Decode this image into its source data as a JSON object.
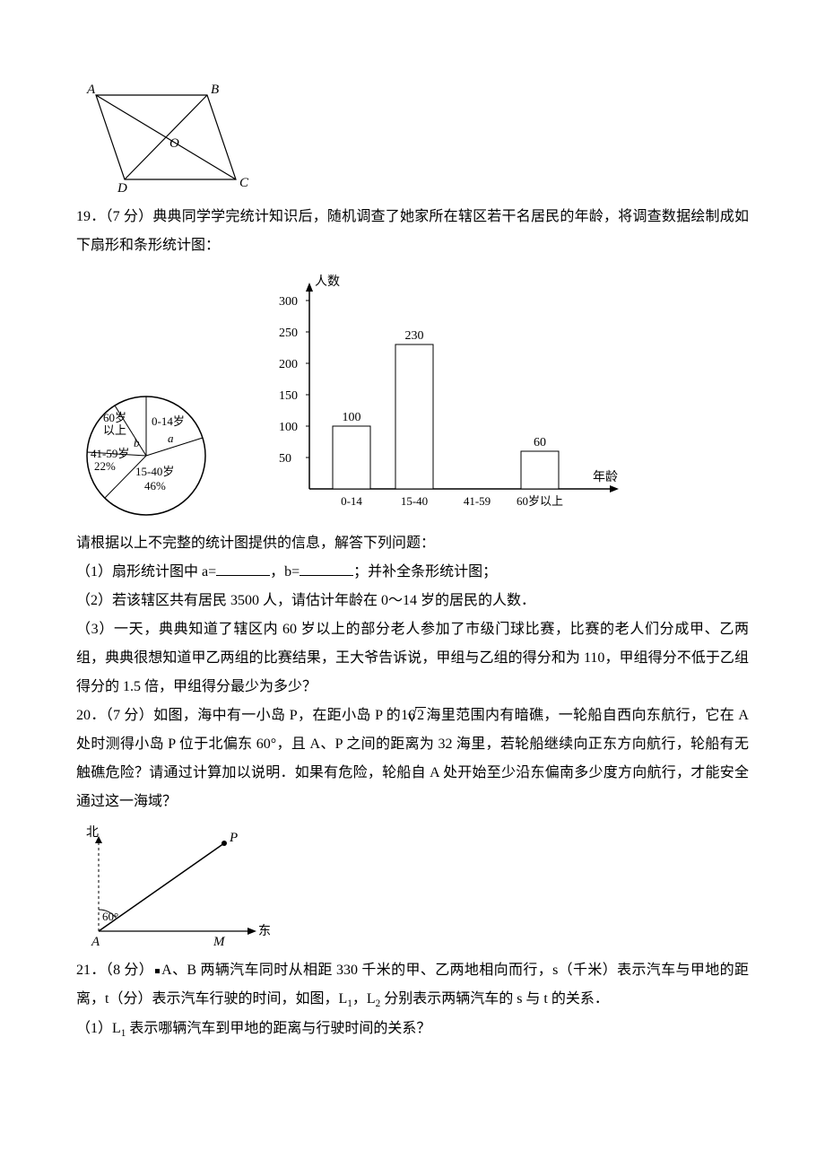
{
  "fig18": {
    "labels": {
      "A": "A",
      "B": "B",
      "C": "C",
      "D": "D",
      "O": "O"
    },
    "points": {
      "A": [
        22,
        10
      ],
      "B": [
        146,
        10
      ],
      "C": [
        178,
        112
      ],
      "D": [
        54,
        112
      ]
    },
    "stroke": "#000000",
    "label_fontsize": 15,
    "label_style": "italic"
  },
  "q19": {
    "num": "19．",
    "points": "（7 分）",
    "text1": "典典同学学完统计知识后，随机调查了她家所在辖区若干名居民的年龄，将调查数据绘制成如下扇形和条形统计图：",
    "text2": "请根据以上不完整的统计图提供的信息，解答下列问题：",
    "sub1_a": "（1）扇形统计图中 a=",
    "sub1_b": "，b=",
    "sub1_c": "；并补全条形统计图；",
    "sub2": "（2）若该辖区共有居民 3500 人，请估计年龄在 0～14 岁的居民的人数．",
    "sub3": "（3）一天，典典知道了辖区内 60 岁以上的部分老人参加了市级门球比赛，比赛的老人们分成甲、乙两组，典典很想知道甲乙两组的比赛结果，王大爷告诉说，甲组与乙组的得分和为 110，甲组得分不低于乙组得分的 1.5 倍，甲组得分最少为多少？",
    "pie": {
      "groups": [
        "60岁",
        "以上",
        "0-14岁",
        "41-59岁",
        "22%",
        "15-40岁",
        "46%"
      ],
      "a_label": "a",
      "b_label": "b",
      "stroke": "#000000"
    },
    "bar": {
      "ylabel": "人数",
      "xlabel": "年龄",
      "categories": [
        "0-14",
        "15-40",
        "41-59",
        "60岁以上"
      ],
      "values": [
        100,
        230,
        null,
        60
      ],
      "value_labels": [
        "100",
        "230",
        "",
        "60"
      ],
      "yaxis_max": 300,
      "ytick_step": 50,
      "yticks": [
        50,
        100,
        150,
        200,
        250,
        300
      ],
      "bar_fill": "#ffffff",
      "bar_stroke": "#000000",
      "axis_color": "#000000",
      "label_fontsize": 14
    }
  },
  "q20": {
    "num": "20．",
    "points": "（7 分）",
    "text1a": "如图，海中有一小岛 P，在距小岛 P 的",
    "text1b": "海里范围内有暗礁，一轮船自西向东航行，它在 A 处时测得小岛 P 位于北偏东 60°，且 A、P 之间的距离为 32 海里，若轮船继续向正东方向航行，轮船有无触礁危险？请通过计算加以说明．如果有危险，轮船自 A 处开始至少沿东偏南多少度方向航行，才能安全通过这一海域？",
    "sqrt_expr": {
      "coef": "16",
      "rad": "2"
    },
    "fig": {
      "north": "北",
      "east": "东",
      "angle": "60°",
      "A": "A",
      "M": "M",
      "P": "P",
      "stroke": "#000000"
    }
  },
  "q21": {
    "num": "21．",
    "points": "（8 分）",
    "text1a": "A、B 两辆汽车同时从相距 330 千米的甲、乙两地相向而行，s（千米）表示汽车与甲地的距离，t（分）表示汽车行驶的时间，如图，L",
    "sub1": "1",
    "text1b": "，L",
    "sub2": "2",
    "text1c": " 分别表示两辆汽车的 s 与 t 的关系．",
    "sub_q1a": "（1）L",
    "sub_q1b": " 表示哪辆汽车到甲地的距离与行驶时间的关系？"
  },
  "underline_width": 60
}
